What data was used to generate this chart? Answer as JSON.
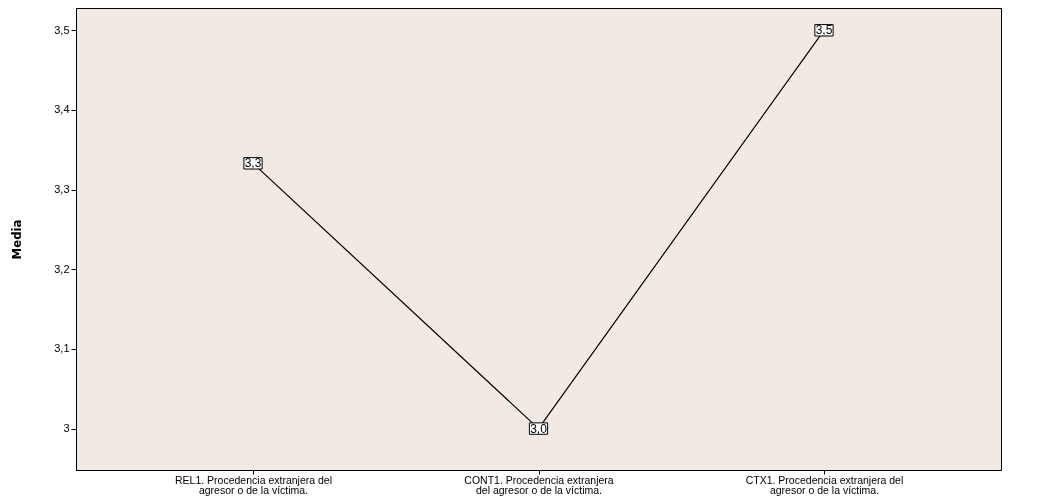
{
  "chart_data": {
    "type": "line",
    "ylabel": "Media",
    "categories": [
      "REL1. Procedencia extranjera del agresor o de la víctima.",
      "CONT1. Procedencia extranjera del agresor o de la víctima.",
      "CTX1. Procedencia extranjera del agresor o de la víctima."
    ],
    "series": [
      {
        "color": "#000000",
        "values": [
          3.333,
          3.0,
          3.5
        ],
        "value_labels": [
          "3,3",
          "3,0",
          "3,5"
        ]
      }
    ],
    "ylim": [
      2.948,
      3.528
    ],
    "yticks": [
      3,
      {
        "value": 3.1,
        "label": "3,1"
      },
      {
        "value": 3.2,
        "label": "3,2"
      },
      {
        "value": 3.3,
        "label": "3,3"
      },
      {
        "value": 3.4,
        "label": "3,4"
      },
      {
        "value": 3.5,
        "label": "3,5"
      }
    ],
    "grid": false,
    "marker": "square",
    "line_style": "solid"
  }
}
